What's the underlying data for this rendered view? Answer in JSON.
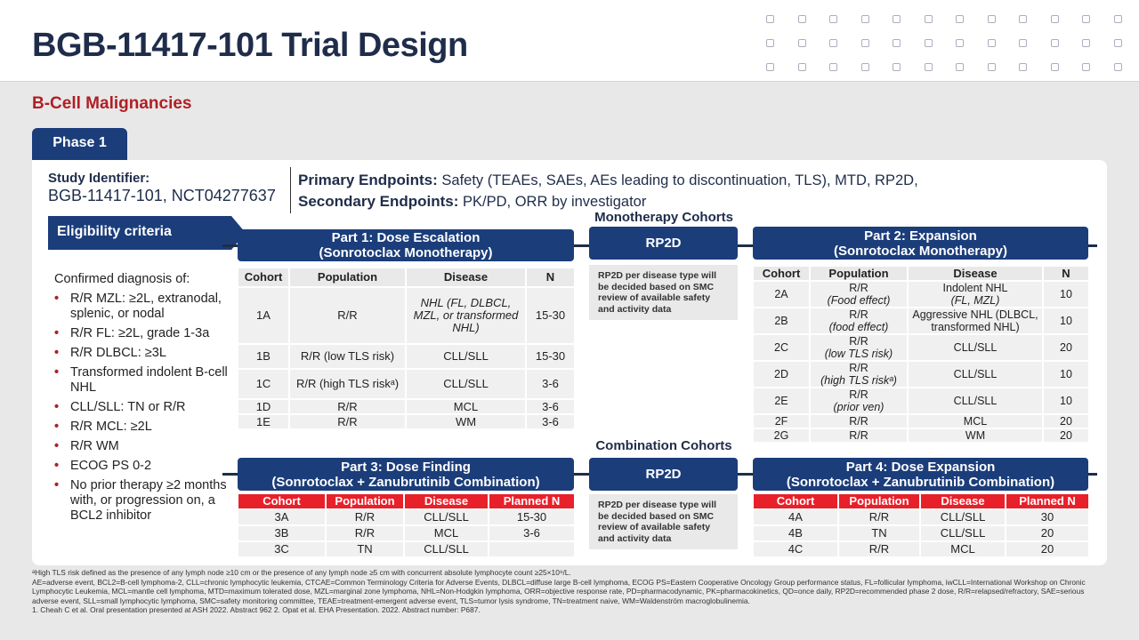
{
  "title": "BGB-11417-101 Trial Design",
  "subtitle": "B-Cell Malignancies",
  "phase_tab": "Phase 1",
  "study": {
    "label": "Study Identifier:",
    "value": "BGB-11417-101, NCT04277637"
  },
  "endpoints": {
    "primary_label": "Primary Endpoints:",
    "primary_value": " Safety (TEAEs, SAEs, AEs leading to discontinuation, TLS), MTD, RP2D,",
    "secondary_label": "Secondary Endpoints:",
    "secondary_value": " PK/PD, ORR by investigator"
  },
  "eligibility": {
    "header": "Eligibility criteria",
    "intro": "Confirmed diagnosis of:",
    "items": [
      "R/R MZL: ≥2L, extranodal, splenic, or nodal",
      "R/R FL: ≥2L, grade 1-3a",
      "R/R DLBCL: ≥3L",
      "Transformed indolent B-cell NHL",
      "CLL/SLL: TN or R/R",
      "R/R MCL: ≥2L",
      "R/R WM",
      "ECOG PS 0-2",
      "No prior therapy ≥2 months with, or progression on, a BCL2 inhibitor"
    ]
  },
  "mono_heading": "Monotherapy Cohorts",
  "combo_heading": "Combination Cohorts",
  "rp2d_label": "RP2D",
  "rp2d_note": "RP2D per disease type will be decided based on SMC review of available safety and activity data",
  "part1": {
    "title": "Part 1: Dose Escalation",
    "subtitle": "(Sonrotoclax Monotherapy)",
    "headers": [
      "Cohort",
      "Population",
      "Disease",
      "N"
    ],
    "rows": [
      {
        "cohort": "1A",
        "population": "R/R",
        "disease": "NHL (FL, DLBCL, MZL, or transformed NHL)",
        "n": "15-30"
      },
      {
        "cohort": "1B",
        "population": "R/R (low TLS risk)",
        "disease": "CLL/SLL",
        "n": "15-30"
      },
      {
        "cohort": "1C",
        "population": "R/R (high TLS riskᵃ)",
        "disease": "CLL/SLL",
        "n": "3-6"
      },
      {
        "cohort": "1D",
        "population": "R/R",
        "disease": "MCL",
        "n": "3-6"
      },
      {
        "cohort": "1E",
        "population": "R/R",
        "disease": "WM",
        "n": "3-6"
      }
    ]
  },
  "part2": {
    "title": "Part 2: Expansion",
    "subtitle": "(Sonrotoclax Monotherapy)",
    "headers": [
      "Cohort",
      "Population",
      "Disease",
      "N"
    ],
    "rows": [
      {
        "cohort": "2A",
        "population": "R/R",
        "population2": "(Food effect)",
        "disease": "Indolent NHL",
        "disease2": "(FL, MZL)",
        "n": "10"
      },
      {
        "cohort": "2B",
        "population": "R/R",
        "population2": "(food effect)",
        "disease": "Aggressive NHL (DLBCL,",
        "disease2": "transformed NHL)",
        "n": "10"
      },
      {
        "cohort": "2C",
        "population": "R/R",
        "population2": "(low TLS risk)",
        "disease": "CLL/SLL",
        "disease2": "",
        "n": "20"
      },
      {
        "cohort": "2D",
        "population": "R/R",
        "population2": "(high TLS riskᵃ)",
        "disease": "CLL/SLL",
        "disease2": "",
        "n": "10"
      },
      {
        "cohort": "2E",
        "population": "R/R",
        "population2": "(prior ven)",
        "disease": "CLL/SLL",
        "disease2": "",
        "n": "10"
      },
      {
        "cohort": "2F",
        "population": "R/R",
        "population2": "",
        "disease": "MCL",
        "disease2": "",
        "n": "20"
      },
      {
        "cohort": "2G",
        "population": "R/R",
        "population2": "",
        "disease": "WM",
        "disease2": "",
        "n": "20"
      }
    ]
  },
  "part3": {
    "title": "Part 3: Dose Finding",
    "subtitle": "(Sonrotoclax + Zanubrutinib Combination)",
    "headers": [
      "Cohort",
      "Population",
      "Disease",
      "Planned N"
    ],
    "rows": [
      {
        "cohort": "3A",
        "population": "R/R",
        "disease": "CLL/SLL",
        "n": "15-30"
      },
      {
        "cohort": "3B",
        "population": "R/R",
        "disease": "MCL",
        "n": "3-6"
      },
      {
        "cohort": "3C",
        "population": "TN",
        "disease": "CLL/SLL",
        "n": ""
      }
    ]
  },
  "part4": {
    "title": "Part 4: Dose Expansion",
    "subtitle": "(Sonrotoclax + Zanubrutinib Combination)",
    "headers": [
      "Cohort",
      "Population",
      "Disease",
      "Planned N"
    ],
    "rows": [
      {
        "cohort": "4A",
        "population": "R/R",
        "disease": "CLL/SLL",
        "n": "30"
      },
      {
        "cohort": "4B",
        "population": "TN",
        "disease": "CLL/SLL",
        "n": "20"
      },
      {
        "cohort": "4C",
        "population": "R/R",
        "disease": "MCL",
        "n": "20"
      }
    ]
  },
  "footnotes": [
    "ᵃHigh TLS risk defined as the presence of any lymph node ≥10 cm or the presence of any lymph node ≥5 cm with concurrent absolute lymphocyte count ≥25×10⁹/L.",
    "AE=adverse event, BCL2=B-cell lymphoma-2, CLL=chronic lymphocytic leukemia, CTCAE=Common Terminology Criteria for Adverse Events, DLBCL=diffuse large B-cell lymphoma, ECOG PS=Eastern Cooperative Oncology Group performance status, FL=follicular lymphoma, iwCLL=International Workshop on Chronic Lymphocytic Leukemia, MCL=mantle cell lymphoma, MTD=maximum tolerated dose, MZL=marginal zone lymphoma, NHL=Non-Hodgkin lymphoma, ORR=objective response rate, PD=pharmacodynamic, PK=pharmacokinetics, QD=once daily, RP2D=recommended phase 2 dose, R/R=relapsed/refractory, SAE=serious adverse event, SLL=small lymphocytic lymphoma, SMC=safety monitoring committee, TEAE=treatment-emergent adverse event, TLS=tumor lysis syndrome, TN=treatment naive, WM=Waldenström macroglobulinemia.",
    "1. Cheah C et al. Oral presentation presented at ASH 2022. Abstract 962 2. Opat et al. EHA Presentation. 2022. Abstract number: P687."
  ]
}
